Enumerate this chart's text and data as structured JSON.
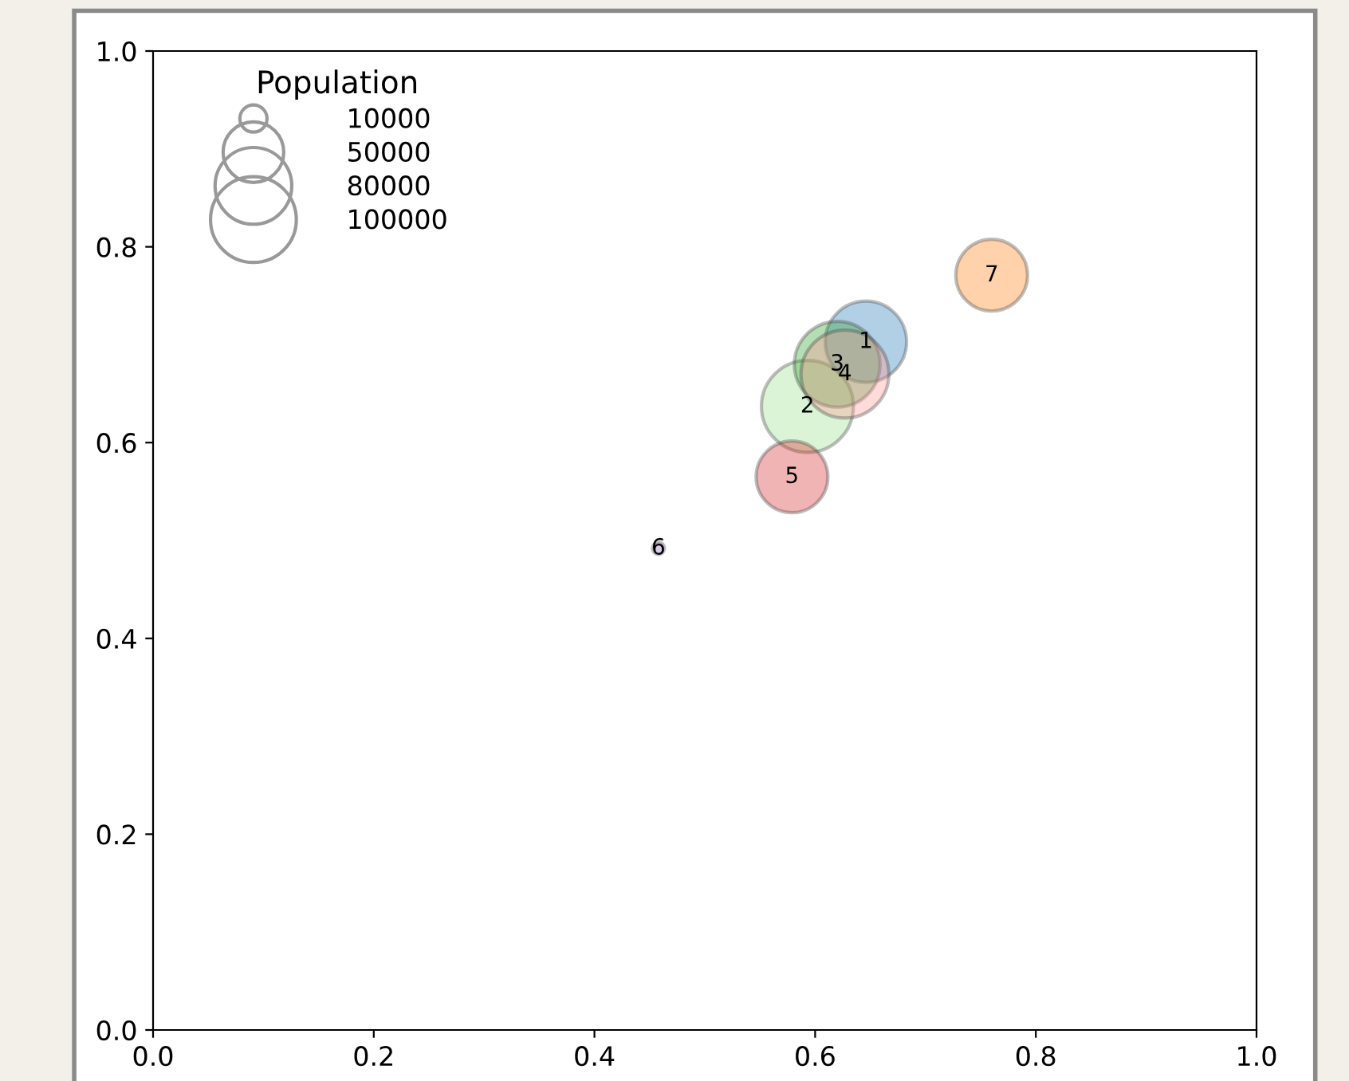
{
  "chart_data": {
    "type": "bubble",
    "legend_title": "Population",
    "x": [
      0.646,
      0.593,
      0.62,
      0.627,
      0.579,
      0.458,
      0.76
    ],
    "values": [
      0.703,
      0.637,
      0.68,
      0.67,
      0.565,
      0.492,
      0.771
    ],
    "sizes": [
      90000,
      115000,
      100000,
      105000,
      70000,
      2000,
      70000
    ],
    "size_legend": [
      10000,
      50000,
      80000,
      100000
    ],
    "colors": [
      "#1f77b4",
      "#98df8a",
      "#2ca02c",
      "#ff9896",
      "#d62728",
      "#9467bd",
      "#ff7f0e"
    ],
    "annotations": [
      {
        "text": "1",
        "x": 0.646,
        "y": 0.703
      },
      {
        "text": "2",
        "x": 0.593,
        "y": 0.637
      },
      {
        "text": "3",
        "x": 0.62,
        "y": 0.68
      },
      {
        "text": "4",
        "x": 0.627,
        "y": 0.67
      },
      {
        "text": "5",
        "x": 0.579,
        "y": 0.565
      },
      {
        "text": "6",
        "x": 0.458,
        "y": 0.492
      },
      {
        "text": "7",
        "x": 0.76,
        "y": 0.771
      }
    ],
    "xlim": [
      0,
      1
    ],
    "ylim": [
      0,
      1
    ],
    "xticks": [
      {
        "value": 0,
        "label": "0.0"
      },
      {
        "value": 0.2,
        "label": "0.2"
      },
      {
        "value": 0.4,
        "label": "0.4"
      },
      {
        "value": 0.6,
        "label": "0.6"
      },
      {
        "value": 0.8,
        "label": "0.8"
      },
      {
        "value": 1,
        "label": "1.0"
      }
    ],
    "yticks": [
      {
        "value": 0,
        "label": "0.0"
      },
      {
        "value": 0.2,
        "label": "0.2"
      },
      {
        "value": 0.4,
        "label": "0.4"
      },
      {
        "value": 0.6,
        "label": "0.6"
      },
      {
        "value": 0.8,
        "label": "0.8"
      },
      {
        "value": 1,
        "label": "1.0"
      }
    ],
    "grid": false
  }
}
